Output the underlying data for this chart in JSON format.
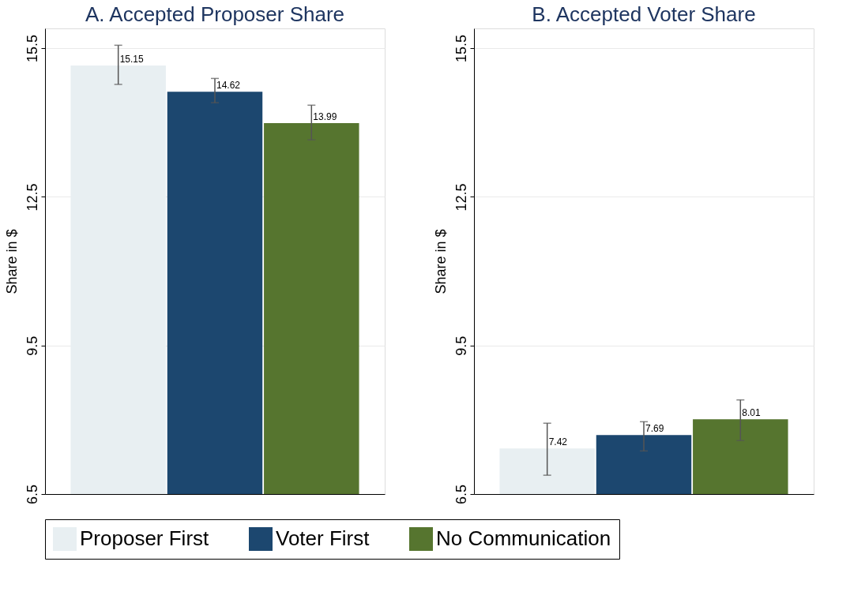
{
  "chart_data": [
    {
      "type": "bar",
      "title": "A. Accepted Proposer Share",
      "ylabel": "Share in $",
      "categories": [
        null
      ],
      "series": [
        {
          "name": "Proposer First",
          "color": "#e8eff2",
          "values": [
            15.15
          ],
          "errors": [
            [
              14.77,
              15.56
            ]
          ]
        },
        {
          "name": "Voter First",
          "color": "#1c476f",
          "values": [
            14.62
          ],
          "errors": [
            [
              14.4,
              14.89
            ]
          ]
        },
        {
          "name": "No Communication",
          "color": "#56752f",
          "values": [
            13.99
          ],
          "errors": [
            [
              13.65,
              14.35
            ]
          ]
        }
      ],
      "ylim": [
        6.5,
        15.9
      ],
      "yticks": [
        6.5,
        9.5,
        12.5,
        15.5
      ],
      "grid": "y",
      "data_labels": true,
      "legend": "bottom"
    },
    {
      "type": "bar",
      "title": "B. Accepted Voter Share",
      "ylabel": "Share in $",
      "categories": [
        null
      ],
      "series": [
        {
          "name": "Proposer First",
          "color": "#e8eff2",
          "values": [
            7.42
          ],
          "errors": [
            [
              6.88,
              7.93
            ]
          ]
        },
        {
          "name": "Voter First",
          "color": "#1c476f",
          "values": [
            7.69
          ],
          "errors": [
            [
              7.37,
              7.96
            ]
          ]
        },
        {
          "name": "No Communication",
          "color": "#56752f",
          "values": [
            8.01
          ],
          "errors": [
            [
              7.58,
              8.4
            ]
          ]
        }
      ],
      "ylim": [
        6.5,
        15.9
      ],
      "yticks": [
        6.5,
        9.5,
        12.5,
        15.5
      ],
      "grid": "y",
      "data_labels": true,
      "legend": "bottom"
    }
  ]
}
